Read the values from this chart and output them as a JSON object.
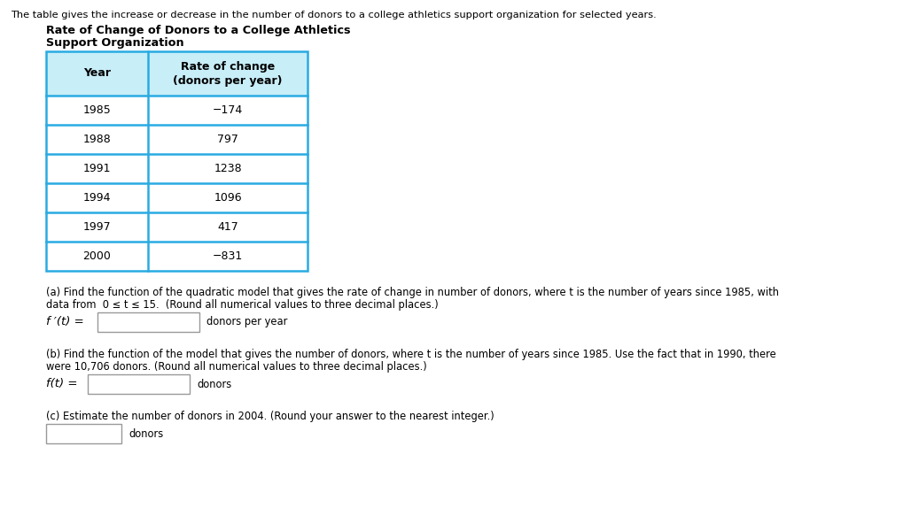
{
  "top_text": "The table gives the increase or decrease in the number of donors to a college athletics support organization for selected years.",
  "table_title_line1": "Rate of Change of Donors to a College Athletics",
  "table_title_line2": "Support Organization",
  "col_header_left": "Year",
  "col_header_right": "Rate of change\n(donors per year)",
  "rows": [
    [
      "1985",
      "−174"
    ],
    [
      "1988",
      "797"
    ],
    [
      "1991",
      "1238"
    ],
    [
      "1994",
      "1096"
    ],
    [
      "1997",
      "417"
    ],
    [
      "2000",
      "−831"
    ]
  ],
  "table_border_color": "#29ABE2",
  "table_header_bg": "#C8EEF8",
  "text_color": "#000000",
  "part_a_line1": "(a) Find the function of the quadratic model that gives the rate of change in number of donors, where t is the number of years since 1985, with",
  "part_a_line2": "data from  0 ≤ t ≤ 15.  (Round all numerical values to three decimal places.)",
  "part_a_label": "f ′(t) =",
  "part_a_suffix": "donors per year",
  "part_b_line1": "(b) Find the function of the model that gives the number of donors, where t is the number of years since 1985. Use the fact that in 1990, there",
  "part_b_line2": "were 10,706 donors. (Round all numerical values to three decimal places.)",
  "part_b_label": "f(t) =",
  "part_b_suffix": "donors",
  "part_c_text": "(c) Estimate the number of donors in 2004. (Round your answer to the nearest integer.)",
  "part_c_suffix": "donors",
  "input_box_border": "#999999",
  "bg_color": "#FFFFFF"
}
